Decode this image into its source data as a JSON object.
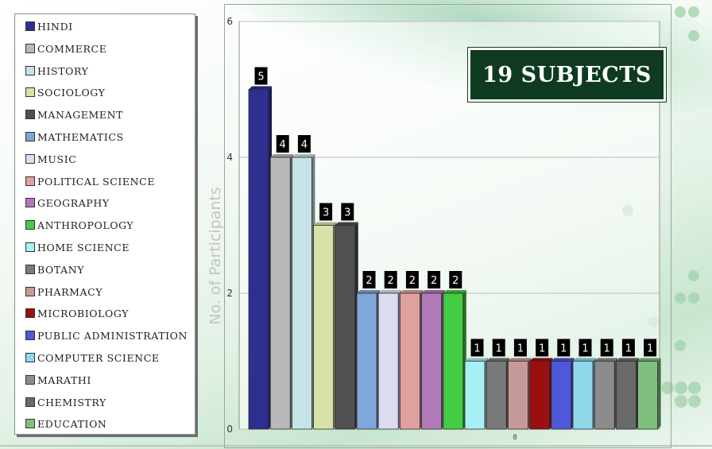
{
  "badge": {
    "title": "19 SUBJECTS"
  },
  "chart_data": {
    "type": "bar",
    "xlabel": "8",
    "ylabel": "No. of Participants",
    "ylim": [
      0,
      6
    ],
    "yticks": [
      0,
      2,
      4,
      6
    ],
    "grid": true,
    "legend_position": "left",
    "series": [
      {
        "name": "HINDI",
        "value": 5,
        "color": "#2f2f8f"
      },
      {
        "name": "COMMERCE",
        "value": 4,
        "color": "#b9b9b9"
      },
      {
        "name": "HISTORY",
        "value": 4,
        "color": "#c6e4e8"
      },
      {
        "name": "SOCIOLOGY",
        "value": 3,
        "color": "#d6e2a8"
      },
      {
        "name": "MANAGEMENT",
        "value": 3,
        "color": "#505050"
      },
      {
        "name": "MATHEMATICS",
        "value": 2,
        "color": "#7fa8d8"
      },
      {
        "name": "MUSIC",
        "value": 2,
        "color": "#dcdcf0"
      },
      {
        "name": "POLITICAL SCIENCE",
        "value": 2,
        "color": "#e0a0a0"
      },
      {
        "name": "GEOGRAPHY",
        "value": 2,
        "color": "#b07ab8"
      },
      {
        "name": "ANTHROPOLOGY",
        "value": 2,
        "color": "#44cc44"
      },
      {
        "name": "HOME SCIENCE",
        "value": 1,
        "color": "#a8eef5"
      },
      {
        "name": "BOTANY",
        "value": 1,
        "color": "#7a7a7a"
      },
      {
        "name": "PHARMACY",
        "value": 1,
        "color": "#c79a9a"
      },
      {
        "name": "MICROBIOLOGY",
        "value": 1,
        "color": "#9a1010"
      },
      {
        "name": "PUBLIC ADMINISTRATION",
        "value": 1,
        "color": "#4f58d8"
      },
      {
        "name": "COMPUTER SCIENCE",
        "value": 1,
        "color": "#8fd8ea"
      },
      {
        "name": "MARATHI",
        "value": 1,
        "color": "#8c8c8c"
      },
      {
        "name": "CHEMISTRY",
        "value": 1,
        "color": "#6a6a6a"
      },
      {
        "name": "EDUCATION",
        "value": 1,
        "color": "#7fc07f"
      }
    ]
  }
}
